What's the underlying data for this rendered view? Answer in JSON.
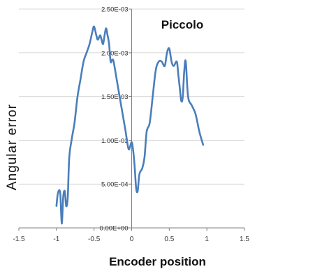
{
  "chart_data": {
    "type": "line",
    "title": "Piccolo",
    "xlabel": "Encoder position",
    "ylabel": "Angular  error",
    "xlim": [
      -1.5,
      1.5
    ],
    "ylim": [
      0,
      0.0025
    ],
    "x_ticks": [
      "-1.5",
      "-1",
      "-0.5",
      "0",
      "0.5",
      "1",
      "1.5"
    ],
    "x_tick_values": [
      -1.5,
      -1,
      -0.5,
      0,
      0.5,
      1,
      1.5
    ],
    "y_ticks": [
      "0.00E+00",
      "5.00E-04",
      "1.00E-03",
      "1.50E-03",
      "2.00E-03",
      "2.50E-03"
    ],
    "y_tick_values": [
      0,
      0.0005,
      0.001,
      0.0015,
      0.002,
      0.0025
    ],
    "grid": "horizontal",
    "legend": "none",
    "series": [
      {
        "color": "#4a7ebb",
        "x": [
          -1.0,
          -0.98,
          -0.95,
          -0.93,
          -0.91,
          -0.89,
          -0.87,
          -0.85,
          -0.83,
          -0.8,
          -0.76,
          -0.72,
          -0.68,
          -0.64,
          -0.6,
          -0.56,
          -0.52,
          -0.5,
          -0.47,
          -0.45,
          -0.42,
          -0.4,
          -0.38,
          -0.36,
          -0.34,
          -0.32,
          -0.3,
          -0.28,
          -0.26,
          -0.24,
          -0.2,
          -0.16,
          -0.12,
          -0.08,
          -0.04,
          0.0,
          0.02,
          0.04,
          0.06,
          0.08,
          0.1,
          0.12,
          0.14,
          0.17,
          0.2,
          0.24,
          0.28,
          0.32,
          0.36,
          0.4,
          0.44,
          0.47,
          0.5,
          0.53,
          0.56,
          0.6,
          0.62,
          0.64,
          0.66,
          0.68,
          0.7,
          0.72,
          0.75,
          0.8,
          0.85,
          0.9,
          0.95
        ],
        "y": [
          0.00025,
          0.0004,
          0.0004,
          5e-05,
          0.00035,
          0.00042,
          0.00025,
          0.00035,
          0.0008,
          0.001,
          0.0012,
          0.0015,
          0.0017,
          0.0019,
          0.002,
          0.0021,
          0.00225,
          0.0023,
          0.0022,
          0.00215,
          0.0022,
          0.00215,
          0.0021,
          0.0022,
          0.00228,
          0.0022,
          0.0021,
          0.0019,
          0.00192,
          0.0019,
          0.0017,
          0.0015,
          0.0013,
          0.0011,
          0.0009,
          0.00098,
          0.00088,
          0.0007,
          0.00045,
          0.00042,
          0.0006,
          0.00065,
          0.00068,
          0.0008,
          0.0011,
          0.0012,
          0.0015,
          0.0018,
          0.0019,
          0.0019,
          0.00185,
          0.002,
          0.00205,
          0.0019,
          0.00185,
          0.0019,
          0.00175,
          0.0016,
          0.00145,
          0.0015,
          0.0018,
          0.0019,
          0.0015,
          0.0014,
          0.0013,
          0.0011,
          0.00095
        ]
      }
    ]
  }
}
